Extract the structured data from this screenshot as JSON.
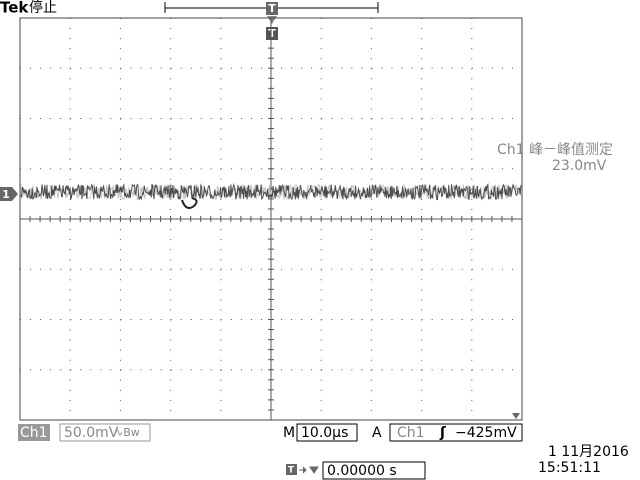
{
  "status": {
    "brand": "Tek",
    "state": "停止"
  },
  "trigger_markers": [
    "T",
    "T",
    "T"
  ],
  "channel_marker": "1",
  "measurement": {
    "label": "Ch1 峰－峰值测定",
    "value": "23.0mV"
  },
  "channel": {
    "name": "Ch1",
    "scale": "50.0mV",
    "bandwidth": "∿Bw"
  },
  "timebase": {
    "prefix": "M",
    "value": "10.0µs"
  },
  "trigger": {
    "prefix": "A",
    "source": "Ch1",
    "slope": "ʃ",
    "level": "−425mV"
  },
  "date": "1 11月2016",
  "time": "15:51:11",
  "position": "0.00000 s"
}
